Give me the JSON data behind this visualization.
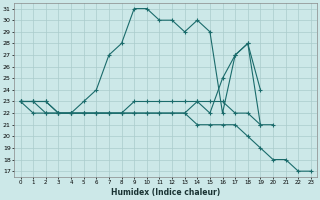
{
  "xlabel": "Humidex (Indice chaleur)",
  "background_color": "#cce8e8",
  "grid_color": "#aacccc",
  "line_color": "#1a6b6b",
  "xlim": [
    -0.5,
    23.5
  ],
  "ylim": [
    16.5,
    31.5
  ],
  "yticks": [
    17,
    18,
    19,
    20,
    21,
    22,
    23,
    24,
    25,
    26,
    27,
    28,
    29,
    30,
    31
  ],
  "xticks": [
    0,
    1,
    2,
    3,
    4,
    5,
    6,
    7,
    8,
    9,
    10,
    11,
    12,
    13,
    14,
    15,
    16,
    17,
    18,
    19,
    20,
    21,
    22,
    23
  ],
  "series": [
    {
      "x": [
        0,
        1,
        2,
        3,
        4,
        5,
        6,
        7,
        8,
        9,
        10,
        11,
        12,
        13,
        14,
        15,
        16,
        17,
        18,
        19
      ],
      "y": [
        23,
        23,
        23,
        22,
        22,
        23,
        24,
        27,
        28,
        31,
        31,
        30,
        30,
        29,
        30,
        29,
        22,
        27,
        28,
        21
      ]
    },
    {
      "x": [
        0,
        1,
        2,
        3,
        4,
        5,
        6,
        7,
        8,
        9,
        10,
        11,
        12,
        13,
        14,
        15,
        16,
        17,
        18,
        19,
        20
      ],
      "y": [
        23,
        23,
        23,
        22,
        22,
        22,
        22,
        22,
        22,
        23,
        23,
        23,
        23,
        23,
        23,
        23,
        23,
        22,
        22,
        21,
        21
      ]
    },
    {
      "x": [
        0,
        1,
        2,
        3,
        4,
        5,
        6,
        7,
        8,
        9,
        10,
        11,
        12,
        13,
        14,
        15,
        16,
        17,
        18,
        19,
        20,
        21,
        22,
        23
      ],
      "y": [
        23,
        23,
        22,
        22,
        22,
        22,
        22,
        22,
        22,
        22,
        22,
        22,
        22,
        22,
        21,
        21,
        21,
        21,
        20,
        19,
        18,
        18,
        17,
        17
      ]
    },
    {
      "x": [
        0,
        1,
        2,
        3,
        4,
        5,
        6,
        7,
        8,
        9,
        10,
        11,
        12,
        13,
        14,
        15,
        16,
        17,
        18,
        19
      ],
      "y": [
        23,
        22,
        22,
        22,
        22,
        22,
        22,
        22,
        22,
        22,
        22,
        22,
        22,
        22,
        23,
        22,
        25,
        27,
        28,
        24
      ]
    }
  ]
}
